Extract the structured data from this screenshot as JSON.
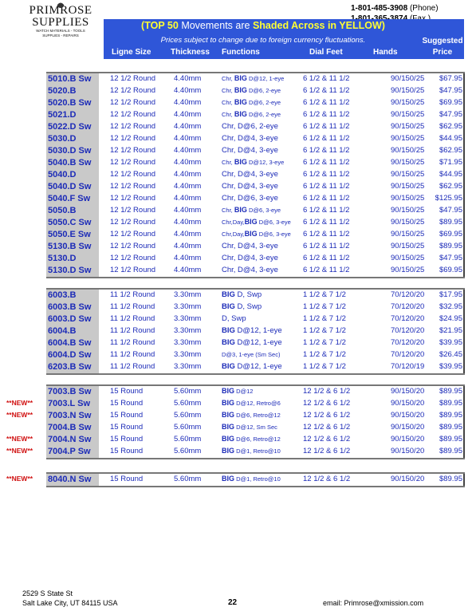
{
  "logo": {
    "line1": "PRIMROSE",
    "line2": "SUPPLIES",
    "line3": "WATCH MATERIALS - TOOLS",
    "line4": "SUPPLIES - REPAIRS"
  },
  "contact": {
    "phone": "1-801-485-3908",
    "phone_label": "(Phone)",
    "fax": "1-801-365-3874",
    "fax_label": "(Fax )"
  },
  "banner": {
    "title_a": "(TOP 50",
    "title_b": " Movements are ",
    "title_c": "Shaded Across in YELLOW)",
    "subtitle": "Prices subject to change due to foreign currency fluctuations.",
    "headers": {
      "ligne": "Ligne Size",
      "thickness": "Thickness",
      "functions": "Functions",
      "dial": "Dial Feet",
      "hands": "Hands",
      "suggested": "Suggested",
      "price": "Price"
    }
  },
  "groups": [
    {
      "rows": [
        {
          "model": "5010.B Sw",
          "ligne": "12 1/2 Round",
          "thick": "4.40mm",
          "f1": "Chr, ",
          "fb": "BIG",
          "f2": " D@12, 1-eye",
          "small": true,
          "dial": "6 1/2 & 11 1/2",
          "hands": "90/150/25",
          "price": "$67.95"
        },
        {
          "model": "5020.B",
          "ligne": "12 1/2 Round",
          "thick": "4.40mm",
          "f1": "Chr, ",
          "fb": "BIG",
          "f2": " D@6, 2-eye",
          "small": true,
          "dial": "6 1/2 & 11 1/2",
          "hands": "90/150/25",
          "price": "$47.95"
        },
        {
          "model": "5020.B Sw",
          "ligne": "12 1/2 Round",
          "thick": "4.40mm",
          "f1": "Chr, ",
          "fb": "BIG",
          "f2": " D@6, 2-eye",
          "small": true,
          "dial": "6 1/2 & 11 1/2",
          "hands": "90/150/25",
          "price": "$69.95"
        },
        {
          "model": "5021.D",
          "ligne": "12 1/2 Round",
          "thick": "4.40mm",
          "f1": "Chr, ",
          "fb": "BIG",
          "f2": " D@6, 2-eye",
          "small": true,
          "dial": "6 1/2 & 11 1/2",
          "hands": "90/150/25",
          "price": "$47.95"
        },
        {
          "model": "5022.D Sw",
          "ligne": "12 1/2 Round",
          "thick": "4.40mm",
          "f1": "Chr, D@6, 2-eye",
          "fb": "",
          "f2": "",
          "small": false,
          "dial": "6 1/2 & 11 1/2",
          "hands": "90/150/25",
          "price": "$62.95"
        },
        {
          "model": "5030.D",
          "ligne": "12 1/2 Round",
          "thick": "4.40mm",
          "f1": "Chr, D@4, 3-eye",
          "fb": "",
          "f2": "",
          "small": false,
          "dial": "6 1/2 & 11 1/2",
          "hands": "90/150/25",
          "price": "$44.95"
        },
        {
          "model": "5030.D Sw",
          "ligne": "12 1/2 Round",
          "thick": "4.40mm",
          "f1": "Chr, D@4, 3-eye",
          "fb": "",
          "f2": "",
          "small": false,
          "dial": "6 1/2 & 11 1/2",
          "hands": "90/150/25",
          "price": "$62.95"
        },
        {
          "model": "5040.B Sw",
          "ligne": "12 1/2 Round",
          "thick": "4.40mm",
          "f1": "Chr, ",
          "fb": "BIG",
          "f2": " D@12, 3-eye",
          "small": true,
          "dial": "6 1/2 & 11 1/2",
          "hands": "90/150/25",
          "price": "$71.95"
        },
        {
          "model": "5040.D",
          "ligne": "12 1/2 Round",
          "thick": "4.40mm",
          "f1": "Chr, D@4, 3-eye",
          "fb": "",
          "f2": "",
          "small": false,
          "dial": "6 1/2 & 11 1/2",
          "hands": "90/150/25",
          "price": "$44.95"
        },
        {
          "model": "5040.D Sw",
          "ligne": "12 1/2 Round",
          "thick": "4.40mm",
          "f1": "Chr, D@4, 3-eye",
          "fb": "",
          "f2": "",
          "small": false,
          "dial": "6 1/2 & 11 1/2",
          "hands": "90/150/25",
          "price": "$62.95"
        },
        {
          "model": "5040.F Sw",
          "ligne": "12 1/2 Round",
          "thick": "4.40mm",
          "f1": "Chr, D@6, 3-eye",
          "fb": "",
          "f2": "",
          "small": false,
          "dial": "6 1/2 & 11 1/2",
          "hands": "90/150/25",
          "price": "$125.95"
        },
        {
          "model": "5050.B",
          "ligne": "12 1/2 Round",
          "thick": "4.40mm",
          "f1": "Chr, ",
          "fb": "BIG",
          "f2": " D@6, 3-eye",
          "small": true,
          "dial": "6 1/2 & 11 1/2",
          "hands": "90/150/25",
          "price": "$47.95"
        },
        {
          "model": "5050.C Sw",
          "ligne": "12 1/2 Round",
          "thick": "4.40mm",
          "f1": "Chr,Day,",
          "fb": "BIG",
          "f2": " D@6, 3-eye",
          "small": true,
          "dial": "6 1/2 & 11 1/2",
          "hands": "90/150/25",
          "price": "$89.95"
        },
        {
          "model": "5050.E Sw",
          "ligne": "12 1/2 Round",
          "thick": "4.40mm",
          "f1": "Chr,Day,",
          "fb": "BIG",
          "f2": " D@6, 3-eye",
          "small": true,
          "dial": "6 1/2 & 11 1/2",
          "hands": "90/150/25",
          "price": "$69.95"
        },
        {
          "model": "5130.B Sw",
          "ligne": "12 1/2 Round",
          "thick": "4.40mm",
          "f1": "Chr, D@4, 3-eye",
          "fb": "",
          "f2": "",
          "small": false,
          "dial": "6 1/2 & 11 1/2",
          "hands": "90/150/25",
          "price": "$89.95"
        },
        {
          "model": "5130.D",
          "ligne": "12 1/2 Round",
          "thick": "4.40mm",
          "f1": "Chr, D@4, 3-eye",
          "fb": "",
          "f2": "",
          "small": false,
          "dial": "6 1/2 & 11 1/2",
          "hands": "90/150/25",
          "price": "$47.95"
        },
        {
          "model": "5130.D Sw",
          "ligne": "12 1/2 Round",
          "thick": "4.40mm",
          "f1": "Chr, D@4, 3-eye",
          "fb": "",
          "f2": "",
          "small": false,
          "dial": "6 1/2 & 11 1/2",
          "hands": "90/150/25",
          "price": "$69.95"
        }
      ]
    },
    {
      "rows": [
        {
          "model": "6003.B",
          "ligne": "11 1/2 Round",
          "thick": "3.30mm",
          "f1": "",
          "fb": "BIG",
          "f2": " D, Swp",
          "small": false,
          "dial": "1 1/2 & 7 1/2",
          "hands": "70/120/20",
          "price": "$17.95"
        },
        {
          "model": "6003.B Sw",
          "ligne": "11 1/2 Round",
          "thick": "3.30mm",
          "f1": "",
          "fb": "BIG",
          "f2": " D, Swp",
          "small": false,
          "dial": "1 1/2 & 7 1/2",
          "hands": "70/120/20",
          "price": "$32.95"
        },
        {
          "model": "6003.D Sw",
          "ligne": "11 1/2 Round",
          "thick": "3.30mm",
          "f1": "D, Swp",
          "fb": "",
          "f2": "",
          "small": false,
          "dial": "1 1/2 & 7 1/2",
          "hands": "70/120/20",
          "price": "$24.95"
        },
        {
          "model": "6004.B",
          "ligne": "11 1/2 Round",
          "thick": "3.30mm",
          "f1": "",
          "fb": "BIG",
          "f2": " D@12, 1-eye",
          "small": false,
          "dial": "1 1/2 & 7 1/2",
          "hands": "70/120/20",
          "price": "$21.95"
        },
        {
          "model": "6004.B Sw",
          "ligne": "11 1/2 Round",
          "thick": "3.30mm",
          "f1": "",
          "fb": "BIG",
          "f2": " D@12, 1-eye",
          "small": false,
          "dial": "1 1/2 & 7 1/2",
          "hands": "70/120/20",
          "price": "$39.95"
        },
        {
          "model": "6004.D Sw",
          "ligne": "11 1/2 Round",
          "thick": "3.30mm",
          "f1": "D@3, 1-eye (Sm Sec)",
          "fb": "",
          "f2": "",
          "small": true,
          "dial": "1 1/2 & 7 1/2",
          "hands": "70/120/20",
          "price": "$26.45"
        },
        {
          "model": "6203.B Sw",
          "ligne": "11 1/2 Round",
          "thick": "3.30mm",
          "f1": "",
          "fb": "BIG",
          "f2": " D@12, 1-eye",
          "small": false,
          "dial": "1 1/2 & 7 1/2",
          "hands": "70/120/19",
          "price": "$39.95"
        }
      ]
    },
    {
      "rows": [
        {
          "new": "",
          "model": "7003.B Sw",
          "ligne": "15 Round",
          "thick": "5.60mm",
          "f1": "",
          "fb": "BIG",
          "f2": " D@12",
          "small": true,
          "dial": "12 1/2 & 6 1/2",
          "hands": "90/150/20",
          "price": "$89.95"
        },
        {
          "new": "**NEW**",
          "model": "7003.L Sw",
          "ligne": "15 Round",
          "thick": "5.60mm",
          "f1": "",
          "fb": "BIG",
          "f2": " D@12, Retro@6",
          "small": true,
          "dial": "12 1/2 & 6 1/2",
          "hands": "90/150/20",
          "price": "$89.95"
        },
        {
          "new": "**NEW**",
          "model": "7003.N Sw",
          "ligne": "15 Round",
          "thick": "5.60mm",
          "f1": "",
          "fb": "BIG",
          "f2": " D@6, Retro@12",
          "small": true,
          "dial": "12 1/2 & 6 1/2",
          "hands": "90/150/20",
          "price": "$89.95"
        },
        {
          "new": "",
          "model": "7004.B Sw",
          "ligne": "15 Round",
          "thick": "5.60mm",
          "f1": "",
          "fb": "BIG",
          "f2": " D@12, Sm Sec",
          "small": true,
          "dial": "12 1/2 & 6 1/2",
          "hands": "90/150/20",
          "price": "$89.95"
        },
        {
          "new": "**NEW**",
          "model": "7004.N Sw",
          "ligne": "15 Round",
          "thick": "5.60mm",
          "f1": "",
          "fb": "BIG",
          "f2": " D@6, Retro@12",
          "small": true,
          "dial": "12 1/2 & 6 1/2",
          "hands": "90/150/20",
          "price": "$89.95"
        },
        {
          "new": "**NEW**",
          "model": "7004.P Sw",
          "ligne": "15 Round",
          "thick": "5.60mm",
          "f1": "",
          "fb": "BIG",
          "f2": " D@1, Retro@10",
          "small": true,
          "dial": "12 1/2 & 6 1/2",
          "hands": "90/150/20",
          "price": "$89.95"
        }
      ]
    },
    {
      "rows": [
        {
          "new": "**NEW**",
          "model": "8040.N Sw",
          "ligne": "15 Round",
          "thick": "5.60mm",
          "f1": "",
          "fb": "BIG",
          "f2": " D@1, Retro@10",
          "small": true,
          "dial": "12 1/2 & 6 1/2",
          "hands": "90/150/20",
          "price": "$89.95"
        }
      ]
    }
  ],
  "footer": {
    "addr1": "2529 S State St",
    "addr2": "Salt Lake City, UT  84115 USA",
    "page": "22",
    "email": "email: Primrose@xmission.com"
  }
}
